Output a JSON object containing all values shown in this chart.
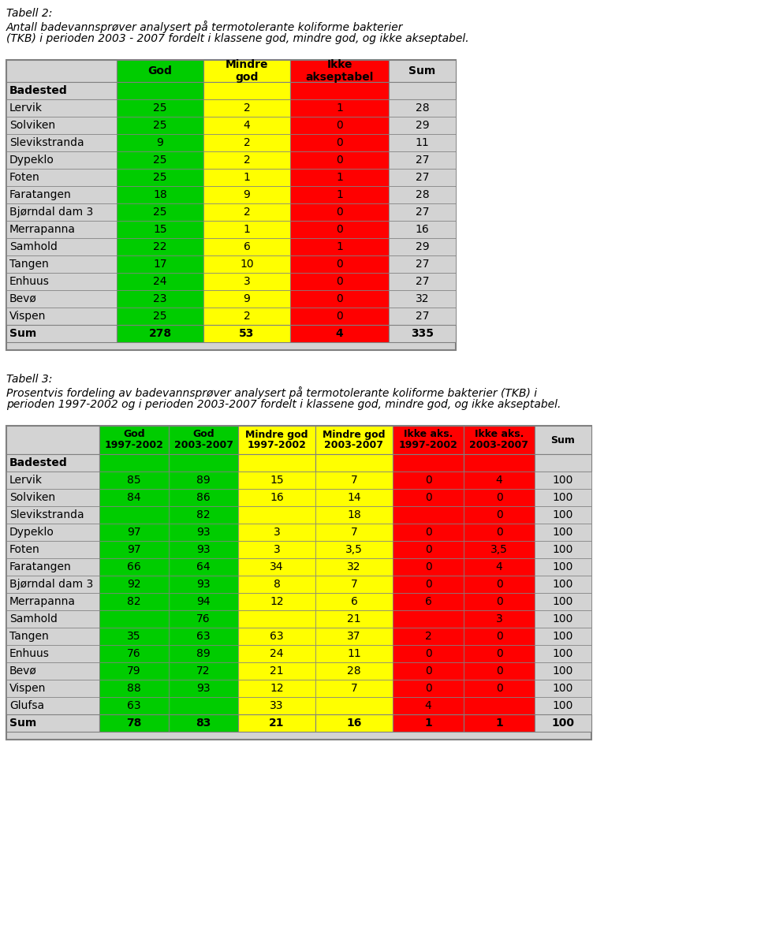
{
  "title1_line1": "Tabell 2:",
  "title1_line2": "Antall badevannsprøver analysert på termotolerante koliforme bakterier",
  "title1_line3": "(TKB) i perioden 2003 - 2007 fordelt i klassene god, mindre god, og ikke akseptabel.",
  "title2_line1": "Tabell 3:",
  "title2_line2": "Prosentvis fordeling av badevannsprøver analysert på termotolerante koliforme bakterier (TKB) i",
  "title2_line3": "perioden 1997-2002 og i perioden 2003-2007 fordelt i klassene god, mindre god, og ikke akseptabel.",
  "table1_rows": [
    [
      "Lervik",
      "25",
      "2",
      "1",
      "28"
    ],
    [
      "Solviken",
      "25",
      "4",
      "0",
      "29"
    ],
    [
      "Slevikstranda",
      "9",
      "2",
      "0",
      "11"
    ],
    [
      "Dypeklo",
      "25",
      "2",
      "0",
      "27"
    ],
    [
      "Foten",
      "25",
      "1",
      "1",
      "27"
    ],
    [
      "Faratangen",
      "18",
      "9",
      "1",
      "28"
    ],
    [
      "Bjørndal dam 3",
      "25",
      "2",
      "0",
      "27"
    ],
    [
      "Merrapanna",
      "15",
      "1",
      "0",
      "16"
    ],
    [
      "Samhold",
      "22",
      "6",
      "1",
      "29"
    ],
    [
      "Tangen",
      "17",
      "10",
      "0",
      "27"
    ],
    [
      "Enhuus",
      "24",
      "3",
      "0",
      "27"
    ],
    [
      "Bevø",
      "23",
      "9",
      "0",
      "32"
    ],
    [
      "Vispen",
      "25",
      "2",
      "0",
      "27"
    ]
  ],
  "table1_sum_row": [
    "Sum",
    "278",
    "53",
    "4",
    "335"
  ],
  "table2_rows": [
    [
      "Lervik",
      "85",
      "89",
      "15",
      "7",
      "0",
      "4",
      "100"
    ],
    [
      "Solviken",
      "84",
      "86",
      "16",
      "14",
      "0",
      "0",
      "100"
    ],
    [
      "Slevikstranda",
      "",
      "82",
      "",
      "18",
      "",
      "0",
      "100"
    ],
    [
      "Dypeklo",
      "97",
      "93",
      "3",
      "7",
      "0",
      "0",
      "100"
    ],
    [
      "Foten",
      "97",
      "93",
      "3",
      "3,5",
      "0",
      "3,5",
      "100"
    ],
    [
      "Faratangen",
      "66",
      "64",
      "34",
      "32",
      "0",
      "4",
      "100"
    ],
    [
      "Bjørndal dam 3",
      "92",
      "93",
      "8",
      "7",
      "0",
      "0",
      "100"
    ],
    [
      "Merrapanna",
      "82",
      "94",
      "12",
      "6",
      "6",
      "0",
      "100"
    ],
    [
      "Samhold",
      "",
      "76",
      "",
      "21",
      "",
      "3",
      "100"
    ],
    [
      "Tangen",
      "35",
      "63",
      "63",
      "37",
      "2",
      "0",
      "100"
    ],
    [
      "Enhuus",
      "76",
      "89",
      "24",
      "11",
      "0",
      "0",
      "100"
    ],
    [
      "Bevø",
      "79",
      "72",
      "21",
      "28",
      "0",
      "0",
      "100"
    ],
    [
      "Vispen",
      "88",
      "93",
      "12",
      "7",
      "0",
      "0",
      "100"
    ],
    [
      "Glufsa",
      "63",
      "",
      "33",
      "",
      "4",
      "",
      "100"
    ]
  ],
  "table2_sum_row": [
    "Sum",
    "78",
    "83",
    "21",
    "16",
    "1",
    "1",
    "100"
  ],
  "bg_color": "#d3d3d3",
  "border_color": "#808080",
  "green": "#00cc00",
  "yellow": "#ffff00",
  "red": "#ff0000",
  "white": "#ffffff"
}
